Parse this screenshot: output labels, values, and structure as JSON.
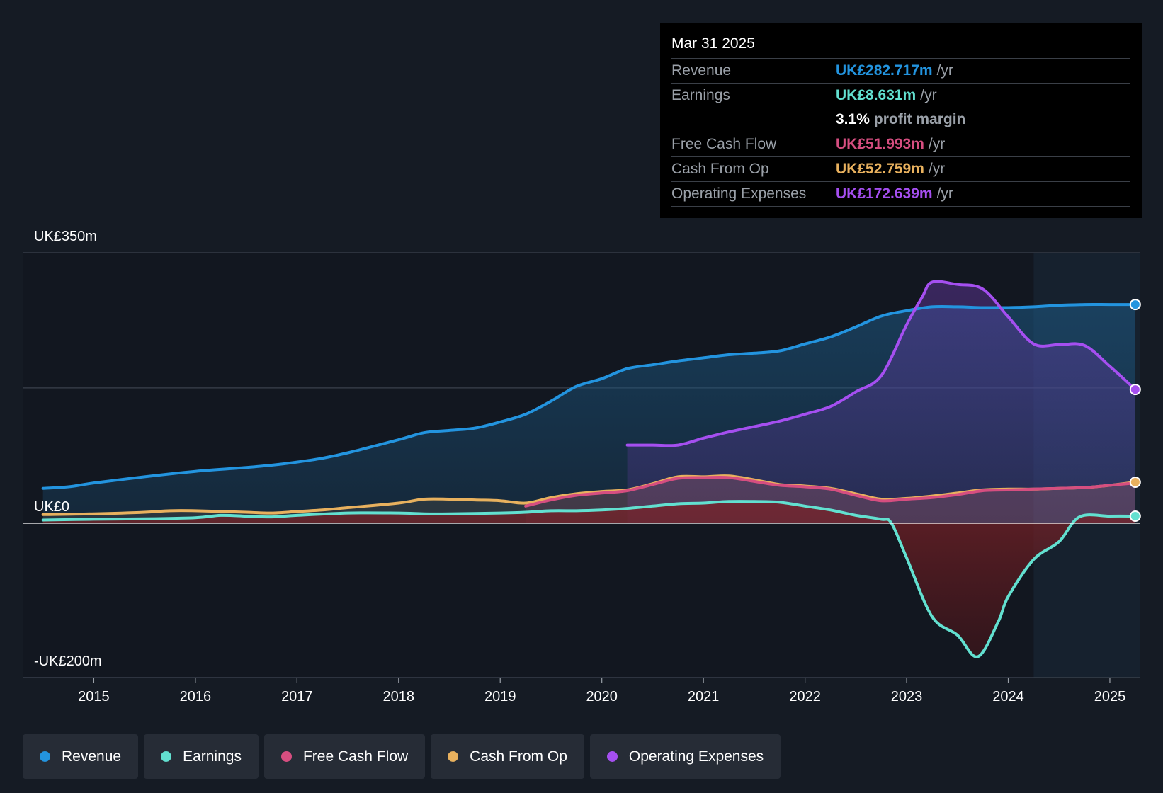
{
  "colors": {
    "revenue": "#2394df",
    "earnings": "#62e0d0",
    "free_cash_flow": "#d64e80",
    "cash_from_op": "#e8b15e",
    "operating_expenses": "#a54ff0"
  },
  "tooltip": {
    "date": "Mar 31 2025",
    "rows": [
      {
        "label": "Revenue",
        "value": "UK£282.717m",
        "unit": "/yr"
      },
      {
        "label": "Earnings",
        "value": "UK£8.631m",
        "unit": "/yr"
      },
      {
        "label": "",
        "value": "3.1%",
        "unit": "profit margin"
      },
      {
        "label": "Free Cash Flow",
        "value": "UK£51.993m",
        "unit": "/yr"
      },
      {
        "label": "Cash From Op",
        "value": "UK£52.759m",
        "unit": "/yr"
      },
      {
        "label": "Operating Expenses",
        "value": "UK£172.639m",
        "unit": "/yr"
      }
    ]
  },
  "legend": [
    {
      "label": "Revenue",
      "icon": "dot-icon"
    },
    {
      "label": "Earnings",
      "icon": "dot-icon"
    },
    {
      "label": "Free Cash Flow",
      "icon": "dot-icon"
    },
    {
      "label": "Cash From Op",
      "icon": "dot-icon"
    },
    {
      "label": "Operating Expenses",
      "icon": "dot-icon"
    }
  ],
  "chart_data": {
    "type": "area",
    "title": "",
    "y_tick_labels": {
      "top": "UK£350m",
      "zero": "UK£0",
      "bottom": "-UK£200m"
    },
    "ylim": [
      -200,
      350
    ],
    "xlim": [
      2014.3,
      2025.3
    ],
    "x_ticks": [
      "2015",
      "2016",
      "2017",
      "2018",
      "2019",
      "2020",
      "2021",
      "2022",
      "2023",
      "2024",
      "2025"
    ],
    "forecast_shade_start": 2024.25,
    "series": [
      {
        "name": "Revenue",
        "key": "revenue",
        "points": [
          [
            2014.5,
            45
          ],
          [
            2014.75,
            47
          ],
          [
            2015,
            52
          ],
          [
            2015.5,
            60
          ],
          [
            2016,
            67
          ],
          [
            2016.5,
            72
          ],
          [
            2016.75,
            75
          ],
          [
            2017,
            79
          ],
          [
            2017.25,
            84
          ],
          [
            2017.5,
            91
          ],
          [
            2018,
            108
          ],
          [
            2018.25,
            117
          ],
          [
            2018.5,
            120
          ],
          [
            2018.75,
            123
          ],
          [
            2019,
            131
          ],
          [
            2019.25,
            141
          ],
          [
            2019.5,
            158
          ],
          [
            2019.75,
            177
          ],
          [
            2020,
            187
          ],
          [
            2020.25,
            200
          ],
          [
            2020.5,
            205
          ],
          [
            2020.75,
            210
          ],
          [
            2021,
            214
          ],
          [
            2021.25,
            218
          ],
          [
            2021.5,
            220
          ],
          [
            2021.75,
            223
          ],
          [
            2022,
            232
          ],
          [
            2022.25,
            241
          ],
          [
            2022.5,
            254
          ],
          [
            2022.75,
            268
          ],
          [
            2023,
            275
          ],
          [
            2023.25,
            280
          ],
          [
            2023.5,
            280
          ],
          [
            2023.75,
            279
          ],
          [
            2024,
            279
          ],
          [
            2024.25,
            280
          ],
          [
            2024.5,
            282
          ],
          [
            2024.75,
            283
          ],
          [
            2025,
            283
          ],
          [
            2025.25,
            283
          ]
        ]
      },
      {
        "name": "Earnings",
        "key": "earnings",
        "points": [
          [
            2014.5,
            4
          ],
          [
            2015,
            5
          ],
          [
            2015.5,
            5.5
          ],
          [
            2016,
            7
          ],
          [
            2016.25,
            10
          ],
          [
            2016.5,
            9
          ],
          [
            2016.75,
            8
          ],
          [
            2017,
            10
          ],
          [
            2017.5,
            13
          ],
          [
            2018,
            13
          ],
          [
            2018.25,
            12
          ],
          [
            2018.5,
            12
          ],
          [
            2019,
            13
          ],
          [
            2019.25,
            14
          ],
          [
            2019.5,
            16
          ],
          [
            2019.75,
            16
          ],
          [
            2020,
            17
          ],
          [
            2020.25,
            19
          ],
          [
            2020.5,
            22
          ],
          [
            2020.75,
            25
          ],
          [
            2021,
            26
          ],
          [
            2021.25,
            28
          ],
          [
            2021.5,
            28
          ],
          [
            2021.75,
            27
          ],
          [
            2022,
            22
          ],
          [
            2022.25,
            17
          ],
          [
            2022.5,
            10
          ],
          [
            2022.75,
            5
          ],
          [
            2022.85,
            0
          ],
          [
            2023,
            -45
          ],
          [
            2023.25,
            -121
          ],
          [
            2023.5,
            -145
          ],
          [
            2023.7,
            -173
          ],
          [
            2023.9,
            -128
          ],
          [
            2024,
            -95
          ],
          [
            2024.25,
            -47
          ],
          [
            2024.5,
            -24
          ],
          [
            2024.7,
            8
          ],
          [
            2025,
            9
          ],
          [
            2025.25,
            9
          ]
        ]
      },
      {
        "name": "Free Cash Flow",
        "key": "free_cash_flow",
        "points": [
          [
            2019.25,
            22
          ],
          [
            2019.5,
            30
          ],
          [
            2019.75,
            36
          ],
          [
            2020,
            39
          ],
          [
            2020.25,
            42
          ],
          [
            2020.5,
            50
          ],
          [
            2020.75,
            58
          ],
          [
            2021,
            59
          ],
          [
            2021.25,
            59
          ],
          [
            2021.5,
            54
          ],
          [
            2021.75,
            49
          ],
          [
            2022,
            47
          ],
          [
            2022.25,
            44
          ],
          [
            2022.5,
            36
          ],
          [
            2022.75,
            29
          ],
          [
            2023,
            31
          ],
          [
            2023.25,
            33
          ],
          [
            2023.5,
            37
          ],
          [
            2023.75,
            42
          ],
          [
            2024,
            43
          ],
          [
            2024.25,
            44
          ],
          [
            2024.5,
            45
          ],
          [
            2024.75,
            46
          ],
          [
            2025,
            49
          ],
          [
            2025.25,
            52
          ]
        ]
      },
      {
        "name": "Cash From Op",
        "key": "cash_from_op",
        "points": [
          [
            2014.5,
            11
          ],
          [
            2015,
            12
          ],
          [
            2015.5,
            14
          ],
          [
            2015.75,
            16
          ],
          [
            2016,
            16
          ],
          [
            2016.5,
            14
          ],
          [
            2016.75,
            13
          ],
          [
            2017,
            15
          ],
          [
            2017.25,
            17
          ],
          [
            2017.5,
            20
          ],
          [
            2018,
            26
          ],
          [
            2018.25,
            31
          ],
          [
            2018.5,
            31
          ],
          [
            2018.75,
            30
          ],
          [
            2019,
            29
          ],
          [
            2019.25,
            26
          ],
          [
            2019.5,
            33
          ],
          [
            2019.75,
            38
          ],
          [
            2020,
            41
          ],
          [
            2020.25,
            43
          ],
          [
            2020.5,
            51
          ],
          [
            2020.75,
            60
          ],
          [
            2021,
            60
          ],
          [
            2021.25,
            61
          ],
          [
            2021.5,
            56
          ],
          [
            2021.75,
            50
          ],
          [
            2022,
            48
          ],
          [
            2022.25,
            45
          ],
          [
            2022.5,
            38
          ],
          [
            2022.75,
            31
          ],
          [
            2023,
            32
          ],
          [
            2023.25,
            35
          ],
          [
            2023.5,
            39
          ],
          [
            2023.75,
            43
          ],
          [
            2024,
            44
          ],
          [
            2024.25,
            44
          ],
          [
            2024.5,
            45
          ],
          [
            2024.75,
            46
          ],
          [
            2025,
            49
          ],
          [
            2025.25,
            53
          ]
        ]
      },
      {
        "name": "Operating Expenses",
        "key": "operating_expenses",
        "points": [
          [
            2020.25,
            101
          ],
          [
            2020.5,
            101
          ],
          [
            2020.75,
            101
          ],
          [
            2021,
            110
          ],
          [
            2021.25,
            118
          ],
          [
            2021.5,
            125
          ],
          [
            2021.75,
            132
          ],
          [
            2022,
            141
          ],
          [
            2022.25,
            151
          ],
          [
            2022.5,
            170
          ],
          [
            2022.75,
            191
          ],
          [
            2023,
            257
          ],
          [
            2023.15,
            292
          ],
          [
            2023.25,
            312
          ],
          [
            2023.5,
            309
          ],
          [
            2023.75,
            303
          ],
          [
            2024,
            267
          ],
          [
            2024.25,
            232
          ],
          [
            2024.5,
            231
          ],
          [
            2024.75,
            230
          ],
          [
            2025,
            203
          ],
          [
            2025.25,
            173
          ]
        ]
      }
    ]
  }
}
